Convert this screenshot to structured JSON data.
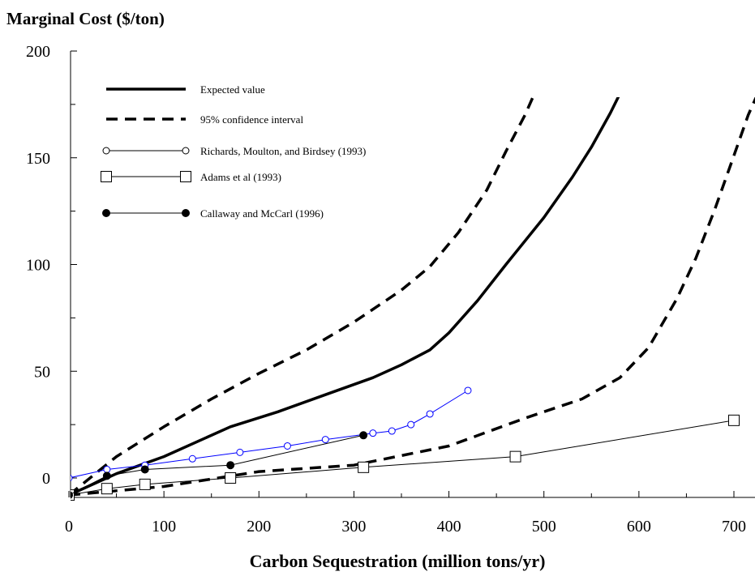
{
  "chart_data": {
    "type": "line",
    "ylabel": "Marginal Cost ($/ton)",
    "xlabel": "Carbon Sequestration (million tons/yr)",
    "xlim": [
      0,
      720
    ],
    "ylim": [
      -8,
      200
    ],
    "xticks": [
      0,
      100,
      200,
      300,
      400,
      500,
      600,
      700
    ],
    "yticks": [
      {
        "value": 200,
        "label": "200"
      },
      {
        "value": 150,
        "label": "150"
      },
      {
        "value": 100,
        "label": "100"
      },
      {
        "value": 50,
        "label": "50"
      },
      {
        "value": 0,
        "label": "0"
      }
    ],
    "grid": false,
    "legend_position": "top-left",
    "series": [
      {
        "name": "Expected value",
        "style": "thick-solid",
        "color": "#000000",
        "points": [
          [
            0,
            -8
          ],
          [
            50,
            2
          ],
          [
            100,
            10
          ],
          [
            170,
            24
          ],
          [
            220,
            31
          ],
          [
            270,
            39
          ],
          [
            320,
            47
          ],
          [
            350,
            53
          ],
          [
            380,
            60
          ],
          [
            400,
            68
          ],
          [
            430,
            83
          ],
          [
            460,
            100
          ],
          [
            500,
            122
          ],
          [
            530,
            141
          ],
          [
            550,
            155
          ],
          [
            570,
            171
          ],
          [
            580,
            180
          ]
        ]
      },
      {
        "name": "95% confidence interval",
        "style": "thick-dashed",
        "color": "#000000",
        "points": [
          [
            0,
            -8
          ],
          [
            50,
            10
          ],
          [
            100,
            24
          ],
          [
            150,
            37
          ],
          [
            200,
            49
          ],
          [
            250,
            60
          ],
          [
            300,
            73
          ],
          [
            350,
            88
          ],
          [
            380,
            99
          ],
          [
            410,
            115
          ],
          [
            440,
            135
          ],
          [
            460,
            153
          ],
          [
            480,
            170
          ],
          [
            490,
            180
          ]
        ]
      },
      {
        "name": "95% confidence interval",
        "style": "thick-dashed",
        "color": "#000000",
        "points": [
          [
            0,
            -8
          ],
          [
            100,
            -4
          ],
          [
            200,
            3
          ],
          [
            300,
            6
          ],
          [
            400,
            15
          ],
          [
            480,
            28
          ],
          [
            540,
            37
          ],
          [
            580,
            47
          ],
          [
            610,
            61
          ],
          [
            640,
            84
          ],
          [
            660,
            103
          ],
          [
            680,
            126
          ],
          [
            700,
            151
          ],
          [
            715,
            170
          ],
          [
            725,
            180
          ]
        ]
      },
      {
        "name": "Richards, Moulton, and Birdsey (1993)",
        "style": "thin-solid-open-circle",
        "color": "#0000ff",
        "points": [
          [
            0,
            0
          ],
          [
            40,
            4
          ],
          [
            80,
            6
          ],
          [
            130,
            9
          ],
          [
            180,
            12
          ],
          [
            230,
            15
          ],
          [
            270,
            18
          ],
          [
            320,
            21
          ],
          [
            340,
            22
          ],
          [
            360,
            25
          ],
          [
            380,
            30
          ],
          [
            420,
            41
          ]
        ]
      },
      {
        "name": "Adams et al (1993)",
        "style": "thin-solid-open-square",
        "color": "#000000",
        "points": [
          [
            0,
            -8
          ],
          [
            40,
            -5
          ],
          [
            80,
            -3
          ],
          [
            170,
            0
          ],
          [
            310,
            5
          ],
          [
            470,
            10
          ],
          [
            700,
            27
          ]
        ]
      },
      {
        "name": "Callaway and McCarl (1996)",
        "style": "thin-solid-filled-circle",
        "color": "#000000",
        "points": [
          [
            0,
            -8
          ],
          [
            40,
            1
          ],
          [
            80,
            4
          ],
          [
            170,
            6
          ],
          [
            310,
            20
          ]
        ]
      }
    ]
  }
}
